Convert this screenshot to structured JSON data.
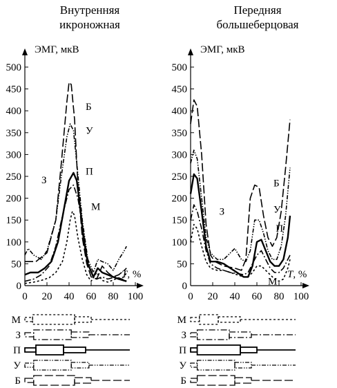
{
  "chart_data": [
    {
      "type": "line",
      "title": "Внутренняя\nикроножная",
      "ylabel": "ЭМГ, мкВ",
      "xlabel": "T, %",
      "xlim": [
        0,
        100
      ],
      "ylim": [
        0,
        500
      ],
      "xticks": [
        "0",
        "20",
        "40",
        "60",
        "80",
        "100"
      ],
      "yticks": [
        "0",
        "50",
        "100",
        "150",
        "200",
        "250",
        "300",
        "350",
        "400",
        "450",
        "500"
      ],
      "series": [
        {
          "name": "Б",
          "label_at": [
            55,
            410
          ],
          "x": [
            0,
            10,
            20,
            28,
            33,
            38,
            40,
            42,
            45,
            48,
            52,
            56,
            60,
            65,
            70,
            75,
            80,
            85,
            90,
            92
          ],
          "y": [
            55,
            55,
            75,
            150,
            280,
            420,
            465,
            460,
            380,
            230,
            110,
            50,
            20,
            15,
            45,
            30,
            20,
            25,
            35,
            40
          ],
          "dash": "12,4"
        },
        {
          "name": "У",
          "label_at": [
            55,
            355
          ],
          "x": [
            0,
            3,
            8,
            15,
            20,
            28,
            33,
            38,
            41,
            44,
            47,
            52,
            57,
            62,
            66,
            70,
            75,
            80,
            85,
            90,
            92
          ],
          "y": [
            70,
            85,
            70,
            60,
            80,
            150,
            250,
            340,
            370,
            355,
            280,
            150,
            60,
            30,
            60,
            55,
            50,
            35,
            60,
            80,
            90
          ],
          "dash": "6,2,1.5,2,1.5,2"
        },
        {
          "name": "П",
          "label_at": [
            55,
            262
          ],
          "x": [
            0,
            5,
            12,
            18,
            24,
            30,
            35,
            40,
            44,
            47,
            50,
            53,
            57,
            62,
            66,
            70,
            75,
            80,
            85,
            92
          ],
          "y": [
            25,
            30,
            30,
            40,
            55,
            100,
            170,
            240,
            258,
            240,
            180,
            110,
            50,
            20,
            40,
            30,
            25,
            20,
            15,
            10
          ],
          "dash": ""
        },
        {
          "name": "З",
          "label_at": [
            15,
            242
          ],
          "x": [
            0,
            8,
            15,
            22,
            28,
            34,
            40,
            44,
            48,
            52,
            56,
            60,
            65,
            70,
            75,
            82,
            88,
            92
          ],
          "y": [
            10,
            15,
            25,
            45,
            90,
            160,
            220,
            230,
            200,
            140,
            70,
            30,
            15,
            20,
            15,
            20,
            15,
            10
          ],
          "dash": "9,3,2,3"
        },
        {
          "name": "М",
          "label_at": [
            60,
            181
          ],
          "x": [
            0,
            8,
            15,
            22,
            28,
            34,
            38,
            41,
            43,
            45,
            48,
            52,
            56,
            60,
            65,
            70,
            75,
            82,
            90,
            92
          ],
          "y": [
            5,
            8,
            12,
            18,
            30,
            55,
            100,
            150,
            170,
            160,
            110,
            60,
            25,
            10,
            30,
            12,
            8,
            15,
            20,
            30
          ],
          "dash": "3,3"
        }
      ]
    },
    {
      "type": "line",
      "title": "Передняя\nбольшеберцовая",
      "ylabel": "ЭМГ, мкВ",
      "xlabel": "T, %",
      "xlim": [
        0,
        100
      ],
      "ylim": [
        0,
        500
      ],
      "xticks": [
        "0",
        "20",
        "40",
        "60",
        "80",
        "100"
      ],
      "yticks": [
        "0",
        "50",
        "100",
        "150",
        "200",
        "250",
        "300",
        "350",
        "400",
        "450",
        "500"
      ],
      "series": [
        {
          "name": "Б",
          "label_at": [
            75,
            235
          ],
          "x": [
            0,
            3,
            6,
            10,
            14,
            18,
            22,
            30,
            40,
            46,
            50,
            54,
            58,
            62,
            66,
            70,
            74,
            78,
            82,
            86,
            90
          ],
          "y": [
            370,
            425,
            410,
            300,
            140,
            70,
            55,
            45,
            40,
            35,
            60,
            200,
            230,
            225,
            160,
            110,
            90,
            110,
            170,
            270,
            380
          ],
          "dash": "12,4"
        },
        {
          "name": "У",
          "label_at": [
            75,
            175
          ],
          "x": [
            0,
            3,
            6,
            10,
            14,
            18,
            24,
            30,
            36,
            40,
            46,
            50,
            54,
            58,
            62,
            66,
            70,
            74,
            78,
            82,
            86,
            90
          ],
          "y": [
            280,
            310,
            290,
            200,
            110,
            75,
            60,
            60,
            75,
            85,
            60,
            55,
            80,
            150,
            150,
            120,
            80,
            60,
            60,
            90,
            160,
            270
          ],
          "dash": "6,2,1.5,2,1.5,2"
        },
        {
          "name": "П",
          "label_at": [
            77,
            131
          ],
          "x": [
            0,
            3,
            6,
            10,
            14,
            18,
            24,
            30,
            36,
            42,
            48,
            52,
            56,
            60,
            64,
            68,
            72,
            76,
            80,
            84,
            88,
            90
          ],
          "y": [
            210,
            255,
            245,
            170,
            90,
            55,
            55,
            50,
            40,
            30,
            20,
            20,
            45,
            100,
            105,
            80,
            55,
            45,
            45,
            60,
            110,
            160
          ],
          "dash": ""
        },
        {
          "name": "З",
          "label_at": [
            26,
            170
          ],
          "x": [
            0,
            3,
            6,
            10,
            14,
            18,
            24,
            30,
            36,
            42,
            48,
            52,
            56,
            60,
            64,
            68,
            72,
            76,
            80,
            84,
            88,
            90
          ],
          "y": [
            150,
            185,
            170,
            130,
            80,
            50,
            40,
            35,
            30,
            28,
            25,
            30,
            50,
            70,
            80,
            60,
            40,
            30,
            30,
            40,
            60,
            70
          ],
          "dash": "9,3,2,3"
        },
        {
          "name": "М",
          "label_at": [
            70,
            10
          ],
          "x": [
            0,
            3,
            6,
            10,
            14,
            18,
            24,
            30,
            36,
            42,
            48,
            52,
            56,
            60,
            64,
            68,
            72,
            76,
            80,
            84,
            88,
            90
          ],
          "y": [
            100,
            140,
            130,
            90,
            55,
            40,
            35,
            35,
            30,
            25,
            20,
            20,
            30,
            45,
            45,
            35,
            25,
            15,
            10,
            15,
            40,
            60
          ],
          "dash": "3,3"
        }
      ]
    }
  ],
  "bars": [
    {
      "rows": [
        {
          "label": "М",
          "dash": "3,3",
          "segments": [
            [
              0,
              7,
              "thin"
            ],
            [
              7,
              45,
              "thick"
            ],
            [
              45,
              60,
              "med"
            ],
            [
              60,
              95,
              "line"
            ]
          ]
        },
        {
          "label": "З",
          "dash": "9,3,2,3",
          "segments": [
            [
              0,
              8,
              "thin"
            ],
            [
              8,
              42,
              "thick"
            ],
            [
              42,
              58,
              "med"
            ],
            [
              58,
              95,
              "line"
            ]
          ]
        },
        {
          "label": "П",
          "dash": "",
          "segments": [
            [
              0,
              10,
              "thin"
            ],
            [
              10,
              35,
              "thick"
            ],
            [
              35,
              55,
              "med"
            ],
            [
              55,
              95,
              "line"
            ]
          ]
        },
        {
          "label": "У",
          "dash": "6,2,1.5,2,1.5,2",
          "segments": [
            [
              0,
              8,
              "thin"
            ],
            [
              8,
              42,
              "thick"
            ],
            [
              42,
              58,
              "med"
            ],
            [
              58,
              95,
              "line"
            ]
          ]
        },
        {
          "label": "Б",
          "dash": "12,4",
          "segments": [
            [
              0,
              8,
              "thin"
            ],
            [
              8,
              45,
              "thick"
            ],
            [
              45,
              60,
              "med"
            ],
            [
              60,
              95,
              "line"
            ]
          ]
        }
      ]
    },
    {
      "rows": [
        {
          "label": "М",
          "dash": "3,3",
          "segments": [
            [
              0,
              8,
              "thin"
            ],
            [
              8,
              25,
              "thick"
            ],
            [
              25,
              45,
              "med"
            ],
            [
              45,
              95,
              "line"
            ]
          ]
        },
        {
          "label": "З",
          "dash": "9,3,2,3",
          "segments": [
            [
              0,
              6,
              "thin"
            ],
            [
              6,
              35,
              "thick"
            ],
            [
              35,
              55,
              "med"
            ],
            [
              55,
              95,
              "line"
            ]
          ]
        },
        {
          "label": "П",
          "dash": "",
          "segments": [
            [
              0,
              6,
              "thin"
            ],
            [
              6,
              45,
              "thick"
            ],
            [
              45,
              60,
              "med"
            ],
            [
              60,
              95,
              "line"
            ]
          ]
        },
        {
          "label": "У",
          "dash": "6,2,1.5,2,1.5,2",
          "segments": [
            [
              0,
              6,
              "thin"
            ],
            [
              6,
              40,
              "thick"
            ],
            [
              40,
              55,
              "med"
            ],
            [
              55,
              95,
              "line"
            ]
          ]
        },
        {
          "label": "Б",
          "dash": "12,4",
          "segments": [
            [
              0,
              6,
              "thin"
            ],
            [
              6,
              40,
              "thick"
            ],
            [
              40,
              55,
              "med"
            ],
            [
              55,
              95,
              "line"
            ]
          ]
        }
      ]
    }
  ]
}
